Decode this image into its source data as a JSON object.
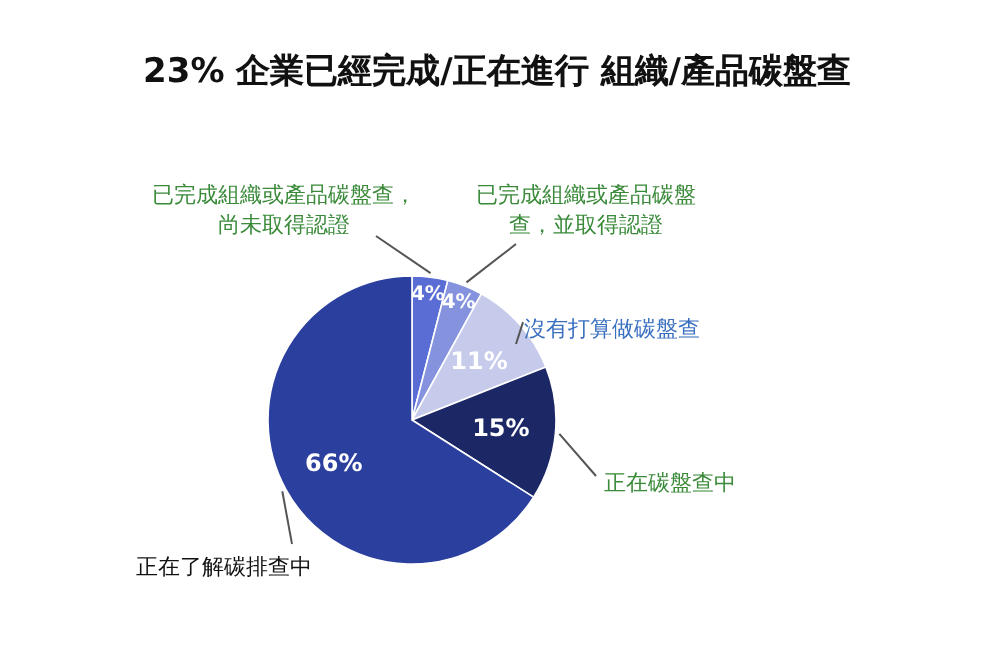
{
  "chart_data": {
    "type": "pie",
    "title": "23% 企業已經完成/正在進行 組織/產品碳盤查",
    "categories": [
      "已完成組織或產品碳盤查，尚未取得認證",
      "已完成組織或產品碳盤查，並取得認證",
      "沒有打算做碳盤查",
      "正在碳盤查中",
      "正在了解碳排查中"
    ],
    "values": [
      4,
      4,
      11,
      15,
      66
    ],
    "colors": [
      "#5a6dd4",
      "#8592dd",
      "#c6cbec",
      "#1c2766",
      "#2b3f9e"
    ],
    "value_labels": [
      "4%",
      "4%",
      "11%",
      "15%",
      "66%"
    ],
    "legend": false
  }
}
